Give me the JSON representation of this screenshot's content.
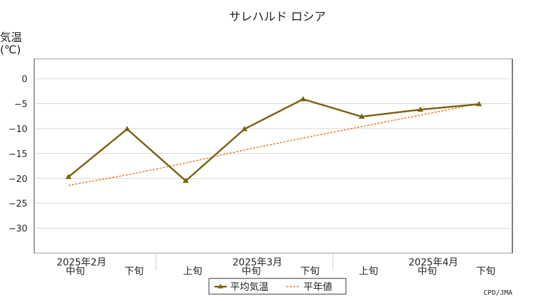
{
  "chart_data": {
    "type": "line",
    "title": "サレハルド ロシア",
    "ylabel_line1": "気温",
    "ylabel_line2": "(℃)",
    "ylim": [
      -35,
      4
    ],
    "yticks": [
      0,
      -5,
      -10,
      -15,
      -20,
      -25,
      -30
    ],
    "grid": true,
    "categories": [
      "中旬",
      "下旬",
      "上旬",
      "中旬",
      "下旬",
      "上旬",
      "中旬",
      "下旬"
    ],
    "month_labels": [
      {
        "label": "2025年2月",
        "index": 0
      },
      {
        "label": "2025年3月",
        "index": 3
      },
      {
        "label": "2025年4月",
        "index": 6
      }
    ],
    "series": [
      {
        "name": "平均気温",
        "color": "#7a6212",
        "marker": "triangle",
        "values": [
          -19.7,
          -10.1,
          -20.5,
          -10.1,
          -4.1,
          -7.6,
          -6.2,
          -5.1
        ]
      },
      {
        "name": "平年値",
        "color": "#e87a1e",
        "dashed": true,
        "values": [
          -21.4,
          -19.3,
          -16.9,
          -14.3,
          -11.9,
          -9.6,
          -7.3,
          -5.0
        ]
      }
    ],
    "legend_position": "bottom",
    "credit": "CPD/JMA"
  }
}
